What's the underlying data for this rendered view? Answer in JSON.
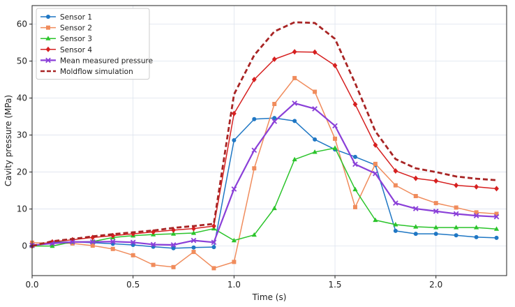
{
  "chart_data": {
    "type": "line",
    "xlabel": "Time (s)",
    "ylabel": "Cavity pressure (MPa)",
    "xlim": [
      0.0,
      2.35
    ],
    "ylim": [
      -8,
      65
    ],
    "xticks": [
      "0.0",
      "0.5",
      "1.0",
      "1.5",
      "2.0"
    ],
    "xtick_values": [
      0.0,
      0.5,
      1.0,
      1.5,
      2.0
    ],
    "yticks": [
      "0",
      "10",
      "20",
      "30",
      "40",
      "50",
      "60"
    ],
    "ytick_values": [
      0,
      10,
      20,
      30,
      40,
      50,
      60
    ],
    "grid": true,
    "legend_position": "upper-left",
    "x": [
      0.0,
      0.1,
      0.2,
      0.3,
      0.4,
      0.5,
      0.6,
      0.7,
      0.8,
      0.9,
      1.0,
      1.1,
      1.2,
      1.3,
      1.4,
      1.5,
      1.6,
      1.7,
      1.8,
      1.9,
      2.0,
      2.1,
      2.2,
      2.3
    ],
    "series": [
      {
        "name": "Sensor 1",
        "color": "#1f77c4",
        "marker": "circle",
        "dashed": false,
        "width": 1.5,
        "values": [
          0.0,
          1.0,
          1.1,
          0.9,
          0.6,
          0.3,
          -0.2,
          -0.6,
          -0.4,
          -0.3,
          28.6,
          34.3,
          34.6,
          33.8,
          28.8,
          26.1,
          24.1,
          21.9,
          4.1,
          3.3,
          3.3,
          2.9,
          2.4,
          2.2
        ]
      },
      {
        "name": "Sensor 2",
        "color": "#f08c5c",
        "marker": "square",
        "dashed": false,
        "width": 1.5,
        "values": [
          0.9,
          0.8,
          0.7,
          0.1,
          -0.8,
          -2.5,
          -5.1,
          -5.7,
          -1.6,
          -6.0,
          -4.3,
          21.0,
          38.4,
          45.4,
          41.7,
          29.0,
          10.5,
          22.2,
          16.4,
          13.5,
          11.6,
          10.4,
          9.1,
          8.7
        ]
      },
      {
        "name": "Sensor 3",
        "color": "#2bc42b",
        "marker": "triangle",
        "dashed": false,
        "width": 1.5,
        "values": [
          0.0,
          0.0,
          1.1,
          1.2,
          2.3,
          2.8,
          3.1,
          3.3,
          3.5,
          4.7,
          1.5,
          3.0,
          10.2,
          23.4,
          25.4,
          26.5,
          15.3,
          7.0,
          5.8,
          5.2,
          5.0,
          5.0,
          5.0,
          4.6
        ]
      },
      {
        "name": "Sensor 4",
        "color": "#d62020",
        "marker": "diamond",
        "dashed": false,
        "width": 1.5,
        "values": [
          0.0,
          1.1,
          1.7,
          2.3,
          2.8,
          3.3,
          3.8,
          4.3,
          4.7,
          5.4,
          35.8,
          45.0,
          50.5,
          52.5,
          52.4,
          48.8,
          38.3,
          27.3,
          20.3,
          18.3,
          17.6,
          16.4,
          16.0,
          15.5
        ]
      },
      {
        "name": "Mean measured pressure",
        "color": "#8a3fd8",
        "marker": "x",
        "dashed": false,
        "width": 2.2,
        "values": [
          0.2,
          0.7,
          1.1,
          1.1,
          1.2,
          1.0,
          0.4,
          0.3,
          1.5,
          1.0,
          15.4,
          25.9,
          33.7,
          38.6,
          37.1,
          32.5,
          22.1,
          19.6,
          11.6,
          10.1,
          9.4,
          8.7,
          8.2,
          7.9
        ]
      },
      {
        "name": "Moldflow simulation",
        "color": "#a82424",
        "marker": "none",
        "dashed": true,
        "width": 2.8,
        "values": [
          0.0,
          1.3,
          1.9,
          2.6,
          3.2,
          3.7,
          4.2,
          4.9,
          5.4,
          6.0,
          41.0,
          51.6,
          58.0,
          60.5,
          60.3,
          56.0,
          44.0,
          31.0,
          23.5,
          21.0,
          20.0,
          18.8,
          18.2,
          17.8
        ]
      }
    ]
  }
}
